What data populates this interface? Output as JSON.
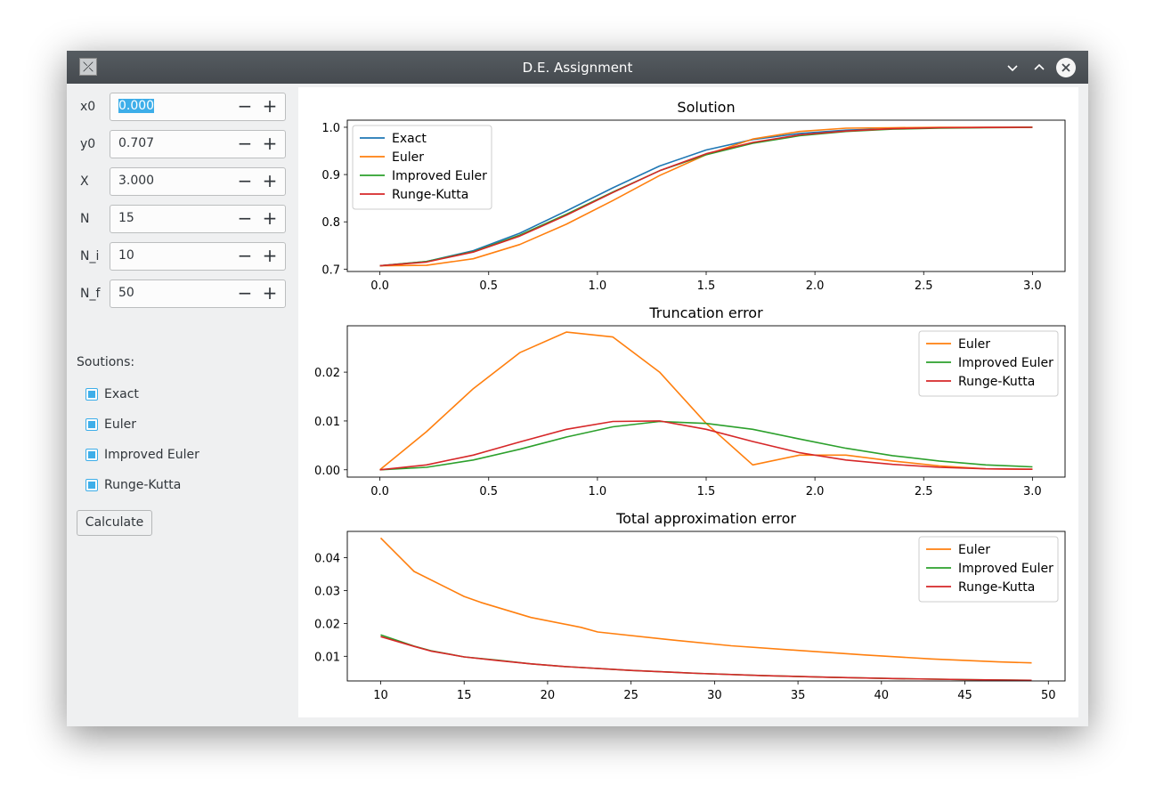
{
  "window": {
    "title": "D.E. Assignment",
    "icon": "app-icon",
    "buttons": [
      "minimize-icon",
      "maximize-icon",
      "close-icon"
    ]
  },
  "params": [
    {
      "label": "x0",
      "value": "0.000",
      "selected": true
    },
    {
      "label": "y0",
      "value": "0.707"
    },
    {
      "label": "X",
      "value": "3.000"
    },
    {
      "label": "N",
      "value": "15"
    },
    {
      "label": "N_i",
      "value": "10"
    },
    {
      "label": "N_f",
      "value": "50"
    }
  ],
  "solutions": {
    "title": "Soutions:",
    "items": [
      {
        "label": "Exact",
        "checked": true
      },
      {
        "label": "Euler",
        "checked": true
      },
      {
        "label": "Improved Euler",
        "checked": true
      },
      {
        "label": "Runge-Kutta",
        "checked": true
      }
    ]
  },
  "calculate_label": "Calculate",
  "colors": {
    "exact": "#1f77b4",
    "euler": "#ff7f0e",
    "improved": "#2ca02c",
    "rk": "#d62728",
    "accent": "#3daee9"
  },
  "chart_data": [
    {
      "type": "line",
      "title": "Solution",
      "xlim": [
        -0.15,
        3.15
      ],
      "ylim": [
        0.695,
        1.015
      ],
      "xticks": [
        0.0,
        0.5,
        1.0,
        1.5,
        2.0,
        2.5,
        3.0
      ],
      "yticks": [
        0.7,
        0.8,
        0.9,
        1.0
      ],
      "tick_decimals": 1,
      "legend": "top-left",
      "series": [
        {
          "name": "Exact",
          "color": "#1f77b4",
          "x": [
            0,
            0.214,
            0.429,
            0.643,
            0.857,
            1.071,
            1.286,
            1.5,
            1.714,
            1.929,
            2.143,
            2.357,
            2.571,
            2.786,
            3.0
          ],
          "y": [
            0.707,
            0.716,
            0.739,
            0.776,
            0.823,
            0.872,
            0.918,
            0.952,
            0.974,
            0.987,
            0.994,
            0.997,
            0.999,
            0.9995,
            1.0
          ]
        },
        {
          "name": "Euler",
          "color": "#ff7f0e",
          "x": [
            0,
            0.214,
            0.429,
            0.643,
            0.857,
            1.071,
            1.286,
            1.5,
            1.714,
            1.929,
            2.143,
            2.357,
            2.571,
            2.786,
            3.0
          ],
          "y": [
            0.707,
            0.708,
            0.722,
            0.752,
            0.795,
            0.845,
            0.898,
            0.942,
            0.975,
            0.991,
            0.998,
            0.999,
            1.0,
            1.0,
            1.0
          ]
        },
        {
          "name": "Improved Euler",
          "color": "#2ca02c",
          "x": [
            0,
            0.214,
            0.429,
            0.643,
            0.857,
            1.071,
            1.286,
            1.5,
            1.714,
            1.929,
            2.143,
            2.357,
            2.571,
            2.786,
            3.0
          ],
          "y": [
            0.707,
            0.716,
            0.737,
            0.772,
            0.816,
            0.863,
            0.908,
            0.942,
            0.966,
            0.982,
            0.991,
            0.996,
            0.998,
            0.999,
            1.0
          ]
        },
        {
          "name": "Runge-Kutta",
          "color": "#d62728",
          "x": [
            0,
            0.214,
            0.429,
            0.643,
            0.857,
            1.071,
            1.286,
            1.5,
            1.714,
            1.929,
            2.143,
            2.357,
            2.571,
            2.786,
            3.0
          ],
          "y": [
            0.707,
            0.715,
            0.736,
            0.77,
            0.814,
            0.862,
            0.908,
            0.944,
            0.968,
            0.984,
            0.992,
            0.997,
            0.999,
            0.9995,
            1.0
          ]
        }
      ]
    },
    {
      "type": "line",
      "title": "Truncation error",
      "xlim": [
        -0.15,
        3.15
      ],
      "ylim": [
        -0.0015,
        0.0295
      ],
      "xticks": [
        0.0,
        0.5,
        1.0,
        1.5,
        2.0,
        2.5,
        3.0
      ],
      "yticks": [
        0.0,
        0.01,
        0.02
      ],
      "tick_decimals": 2,
      "legend": "top-right",
      "series": [
        {
          "name": "Euler",
          "color": "#ff7f0e",
          "x": [
            0,
            0.214,
            0.429,
            0.643,
            0.857,
            1.071,
            1.286,
            1.5,
            1.714,
            1.929,
            2.143,
            2.357,
            2.571,
            2.786,
            3.0
          ],
          "y": [
            0,
            0.0078,
            0.0166,
            0.024,
            0.0282,
            0.0272,
            0.02,
            0.0095,
            0.001,
            0.003,
            0.003,
            0.0018,
            0.0008,
            0.0002,
            0.0001
          ]
        },
        {
          "name": "Improved Euler",
          "color": "#2ca02c",
          "x": [
            0,
            0.214,
            0.429,
            0.643,
            0.857,
            1.071,
            1.286,
            1.5,
            1.714,
            1.929,
            2.143,
            2.357,
            2.571,
            2.786,
            3.0
          ],
          "y": [
            0,
            0.0005,
            0.002,
            0.0042,
            0.0067,
            0.0088,
            0.0099,
            0.0095,
            0.0083,
            0.0063,
            0.0044,
            0.0029,
            0.0018,
            0.001,
            0.0006
          ]
        },
        {
          "name": "Runge-Kutta",
          "color": "#d62728",
          "x": [
            0,
            0.214,
            0.429,
            0.643,
            0.857,
            1.071,
            1.286,
            1.5,
            1.714,
            1.929,
            2.143,
            2.357,
            2.571,
            2.786,
            3.0
          ],
          "y": [
            0,
            0.001,
            0.003,
            0.0057,
            0.0083,
            0.0099,
            0.01,
            0.0083,
            0.0058,
            0.0035,
            0.002,
            0.0011,
            0.0005,
            0.0002,
            0.0001
          ]
        }
      ]
    },
    {
      "type": "line",
      "title": "Total approximation error",
      "xlim": [
        8.0,
        51.0
      ],
      "ylim": [
        0.0025,
        0.048
      ],
      "xticks": [
        10,
        15,
        20,
        25,
        30,
        35,
        40,
        45,
        50
      ],
      "yticks": [
        0.01,
        0.02,
        0.03,
        0.04
      ],
      "tick_decimals": 2,
      "legend": "top-right",
      "series": [
        {
          "name": "Euler",
          "color": "#ff7f0e",
          "x": [
            10,
            12,
            15,
            16,
            19,
            22,
            23,
            27,
            31,
            35,
            39,
            43,
            47,
            49
          ],
          "y": [
            0.046,
            0.0358,
            0.0282,
            0.0264,
            0.0218,
            0.0188,
            0.0174,
            0.0152,
            0.0132,
            0.0118,
            0.0104,
            0.0092,
            0.0083,
            0.008
          ]
        },
        {
          "name": "Improved Euler",
          "color": "#2ca02c",
          "x": [
            10,
            12,
            13,
            15,
            17,
            19,
            21,
            25,
            29,
            33,
            37,
            41,
            45,
            49
          ],
          "y": [
            0.0165,
            0.0131,
            0.0117,
            0.0098,
            0.0088,
            0.0077,
            0.0069,
            0.0057,
            0.0048,
            0.0041,
            0.0036,
            0.0032,
            0.0029,
            0.0027
          ]
        },
        {
          "name": "Runge-Kutta",
          "color": "#d62728",
          "x": [
            10,
            12,
            13,
            15,
            17,
            19,
            21,
            25,
            29,
            33,
            37,
            41,
            45,
            49
          ],
          "y": [
            0.016,
            0.013,
            0.0116,
            0.0098,
            0.0087,
            0.0077,
            0.0069,
            0.0057,
            0.0048,
            0.0041,
            0.0036,
            0.0032,
            0.0029,
            0.0027
          ]
        }
      ]
    }
  ]
}
